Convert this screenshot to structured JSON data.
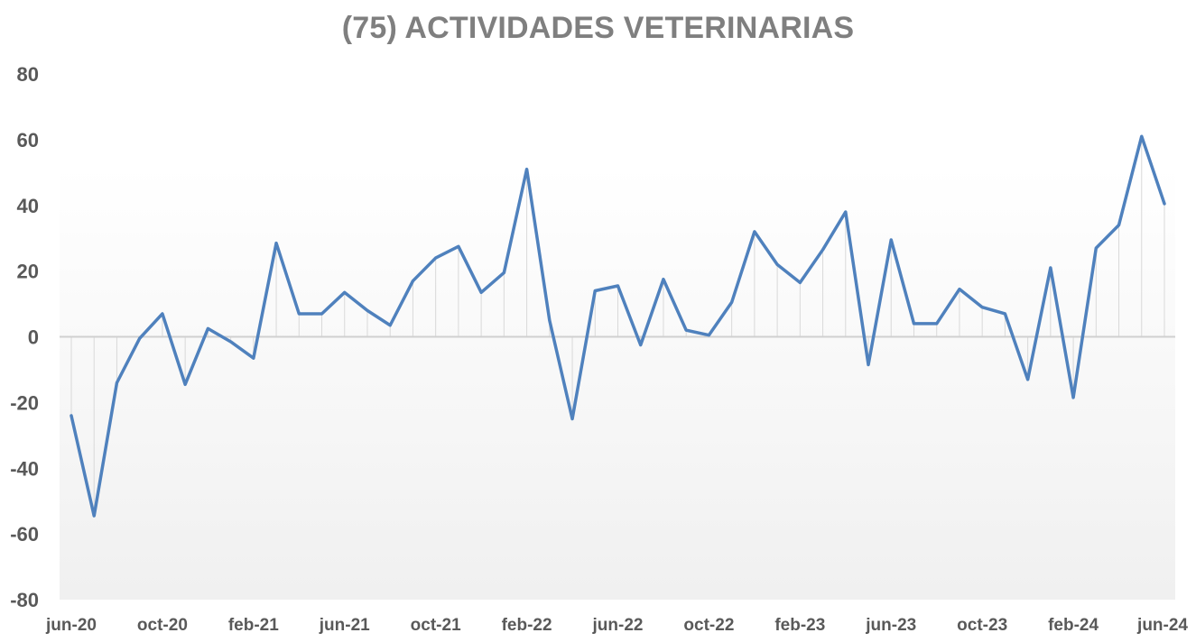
{
  "chart_data": {
    "type": "line",
    "title": "(75) ACTIVIDADES VETERINARIAS",
    "xlabel": "",
    "ylabel": "",
    "ylim": [
      -80,
      80
    ],
    "y_ticks": [
      "80",
      "60",
      "40",
      "20",
      "0",
      "-20",
      "-40",
      "-60",
      "-80"
    ],
    "x_tick_labels": [
      "jun-20",
      "oct-20",
      "feb-21",
      "jun-21",
      "oct-21",
      "feb-22",
      "jun-22",
      "oct-22",
      "feb-23",
      "jun-23",
      "oct-23",
      "feb-24",
      "jun-24"
    ],
    "x": [
      "jun-20",
      "jul-20",
      "ago-20",
      "sep-20",
      "oct-20",
      "nov-20",
      "dic-20",
      "ene-21",
      "feb-21",
      "mar-21",
      "abr-21",
      "may-21",
      "jun-21",
      "jul-21",
      "ago-21",
      "sep-21",
      "oct-21",
      "nov-21",
      "dic-21",
      "ene-22",
      "feb-22",
      "mar-22",
      "abr-22",
      "may-22",
      "jun-22",
      "jul-22",
      "ago-22",
      "sep-22",
      "oct-22",
      "nov-22",
      "dic-22",
      "ene-23",
      "feb-23",
      "mar-23",
      "abr-23",
      "may-23",
      "jun-23",
      "jul-23",
      "ago-23",
      "sep-23",
      "oct-23",
      "nov-23",
      "dic-23",
      "ene-24",
      "feb-24",
      "mar-24",
      "abr-24",
      "may-24",
      "jun-24"
    ],
    "series": [
      {
        "values": [
          -24,
          -54.5,
          -14,
          -0.5,
          7,
          -14.5,
          2.5,
          -1.5,
          -6.5,
          28.5,
          7,
          7,
          13.5,
          8,
          3.5,
          17,
          24,
          27.5,
          13.5,
          19.5,
          51,
          5,
          -25,
          14,
          15.5,
          -2.5,
          17.5,
          2,
          0.5,
          10.5,
          32,
          22,
          16.5,
          26.5,
          38,
          -8.5,
          29.5,
          4,
          4,
          14.5,
          9,
          7,
          -13,
          21,
          -18.5,
          27,
          34,
          61,
          40.5
        ]
      }
    ],
    "colors": {
      "line": "#4f81bd",
      "drop_lines": "#d9d9d9",
      "zero_line": "#d0d0d0"
    },
    "grid": false,
    "legend": "none"
  }
}
